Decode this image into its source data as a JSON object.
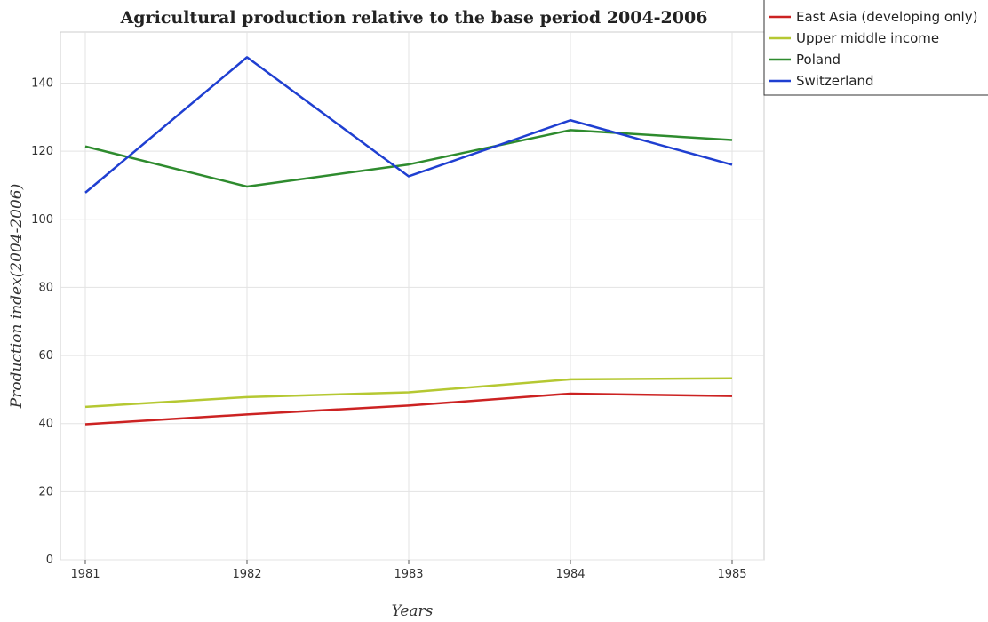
{
  "chart_data": {
    "type": "line",
    "title": "Agricultural production relative to the base period 2004-2006",
    "xlabel": "Years",
    "ylabel": "Production index(2004-2006)",
    "x": [
      "1981",
      "1982",
      "1983",
      "1984",
      "1985"
    ],
    "ylim": [
      0,
      155
    ],
    "yticks": [
      "0",
      "20",
      "40",
      "60",
      "80",
      "100",
      "120",
      "140"
    ],
    "grid": true,
    "legend_position": "top-right",
    "series": [
      {
        "name": "East Asia (developing only)",
        "color": "#cc2222",
        "values": [
          39.8,
          42.7,
          45.3,
          48.8,
          48.1
        ]
      },
      {
        "name": "Upper middle income",
        "color": "#b5c832",
        "values": [
          44.9,
          47.8,
          49.2,
          53.0,
          53.3
        ]
      },
      {
        "name": "Poland",
        "color": "#2e8b2e",
        "values": [
          121.4,
          109.6,
          116.1,
          126.2,
          123.3
        ]
      },
      {
        "name": "Switzerland",
        "color": "#1f3fd1",
        "values": [
          107.8,
          147.6,
          112.6,
          129.1,
          116.0
        ]
      }
    ]
  }
}
